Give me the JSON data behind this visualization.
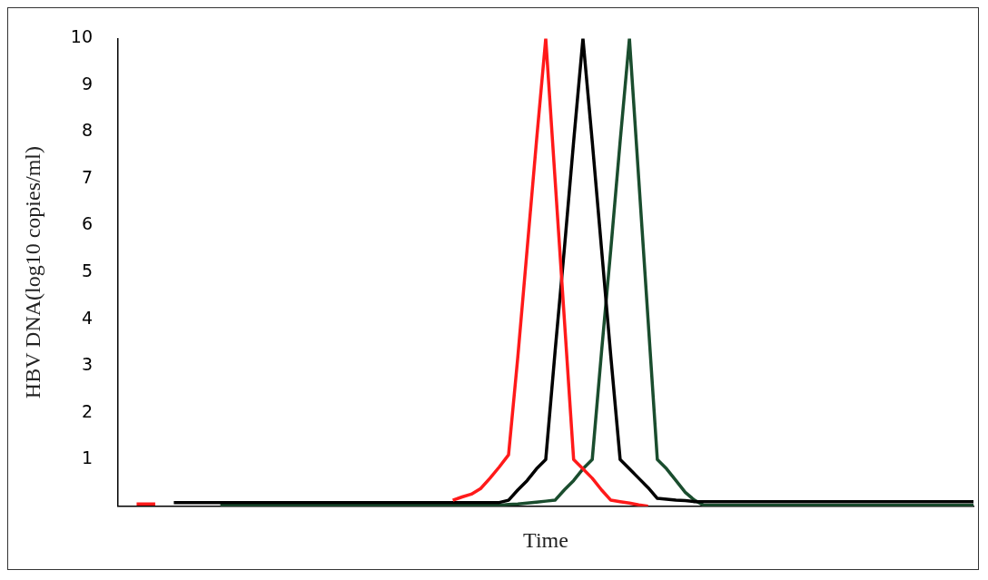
{
  "chart_data": {
    "type": "line",
    "xlabel": "Time",
    "ylabel": "HBV DNA(log10 copies/ml)",
    "categories": [
      null,
      null,
      null,
      null,
      null,
      null,
      null,
      null,
      null,
      null,
      null,
      null,
      null,
      null,
      null,
      null,
      null,
      null,
      null,
      null,
      null,
      null,
      null,
      null,
      null,
      null,
      null,
      null,
      null,
      null,
      null,
      null,
      null,
      null,
      null,
      null,
      null,
      null,
      null,
      null,
      null,
      null,
      null,
      null,
      null,
      null,
      null,
      null,
      null,
      null,
      null,
      null,
      null,
      null,
      null,
      null,
      null,
      null,
      null,
      null,
      null,
      null,
      null,
      null,
      null,
      null,
      null,
      null,
      null,
      null,
      null,
      null,
      null,
      null,
      null,
      null,
      null,
      null,
      null,
      null,
      null,
      null,
      null,
      null,
      null,
      null,
      null,
      null,
      null,
      null,
      null,
      null,
      null
    ],
    "series": [
      {
        "color": "#ff1a1a",
        "values": [
          null,
          null,
          0.05,
          0.05,
          0.05,
          null,
          null,
          null,
          null,
          null,
          null,
          null,
          null,
          null,
          null,
          null,
          null,
          null,
          null,
          null,
          null,
          null,
          null,
          null,
          null,
          null,
          null,
          null,
          null,
          null,
          null,
          null,
          null,
          null,
          null,
          null,
          0.13,
          0.2,
          0.26,
          0.38,
          0.6,
          0.84,
          1.1,
          3.2,
          5.5,
          7.8,
          10,
          7,
          4,
          1,
          0.8,
          0.6,
          0.35,
          0.13,
          0.1,
          0.07,
          0.03,
          0,
          null,
          null,
          null,
          null,
          null,
          null,
          null,
          null,
          null,
          null,
          null,
          null,
          null,
          null,
          null,
          null,
          null,
          null,
          null,
          null,
          null,
          null,
          null,
          null,
          null,
          null,
          null,
          null,
          null,
          null,
          null,
          null,
          null,
          null,
          null
        ]
      },
      {
        "color": "#000000",
        "values": [
          null,
          null,
          null,
          null,
          null,
          null,
          0.08,
          0.08,
          0.08,
          0.08,
          0.08,
          0.08,
          0.08,
          0.08,
          0.08,
          0.08,
          0.08,
          0.08,
          0.08,
          0.08,
          0.08,
          0.08,
          0.08,
          0.08,
          0.08,
          0.08,
          0.08,
          0.08,
          0.08,
          0.08,
          0.08,
          0.08,
          0.08,
          0.08,
          0.08,
          0.08,
          0.08,
          0.08,
          0.08,
          0.08,
          0.08,
          0.08,
          0.13,
          0.35,
          0.55,
          0.8,
          1,
          3.3,
          5.5,
          7.8,
          10,
          7.8,
          5.5,
          3.2,
          1,
          0.8,
          0.6,
          0.4,
          0.17,
          0.15,
          0.13,
          0.12,
          0.1,
          0.1,
          0.1,
          0.1,
          0.1,
          0.1,
          0.1,
          0.1,
          0.1,
          0.1,
          0.1,
          0.1,
          0.1,
          0.1,
          0.1,
          0.1,
          0.1,
          0.1,
          0.1,
          0.1,
          0.1,
          0.1,
          0.1,
          0.1,
          0.1,
          0.1,
          0.1,
          0.1,
          0.1,
          0.1,
          0.1
        ]
      },
      {
        "color": "#1a4d2e",
        "values": [
          null,
          null,
          null,
          null,
          null,
          null,
          null,
          null,
          null,
          null,
          null,
          0.02,
          0.02,
          0.02,
          0.02,
          0.02,
          0.02,
          0.02,
          0.02,
          0.02,
          0.02,
          0.02,
          0.02,
          0.02,
          0.02,
          0.02,
          0.02,
          0.02,
          0.02,
          0.02,
          0.02,
          0.02,
          0.02,
          0.02,
          0.02,
          0.02,
          0.02,
          0.02,
          0.02,
          0.02,
          0.02,
          0.02,
          0.04,
          0.05,
          0.07,
          0.09,
          0.11,
          0.13,
          0.35,
          0.55,
          0.8,
          1,
          3.3,
          5.5,
          7.8,
          10,
          7,
          4,
          1,
          0.8,
          0.55,
          0.3,
          0.13,
          0.02,
          0.02,
          0.02,
          0.02,
          0.02,
          0.02,
          0.02,
          0.02,
          0.02,
          0.02,
          0.02,
          0.02,
          0.02,
          0.02,
          0.02,
          0.02,
          0.02,
          0.02,
          0.02,
          0.02,
          0.02,
          0.02,
          0.02,
          0.02,
          0.02,
          0.02,
          0.02,
          0.02,
          0.02,
          0.02
        ]
      }
    ],
    "ylim": [
      0,
      10
    ],
    "yticks": [
      1,
      2,
      3,
      4,
      5,
      6,
      7,
      8,
      9,
      10
    ],
    "grid": false,
    "legend": false
  }
}
